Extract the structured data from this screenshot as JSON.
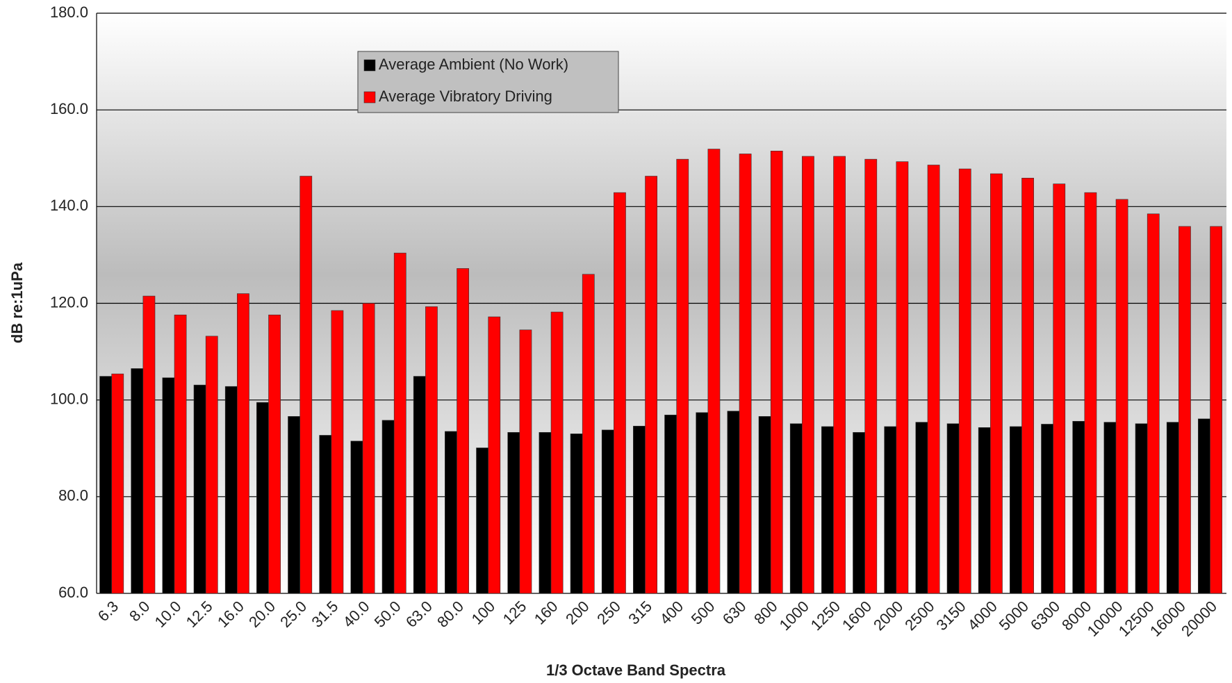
{
  "chart_data": {
    "type": "bar",
    "x_label": "1/3 Octave Band Spectra",
    "y_label": "dB re:1uPa",
    "categories": [
      "6.3",
      "8.0",
      "10.0",
      "12.5",
      "16.0",
      "20.0",
      "25.0",
      "31.5",
      "40.0",
      "50.0",
      "63.0",
      "80.0",
      "100",
      "125",
      "160",
      "200",
      "250",
      "315",
      "400",
      "500",
      "630",
      "800",
      "1000",
      "1250",
      "1600",
      "2000",
      "2500",
      "3150",
      "4000",
      "5000",
      "6300",
      "8000",
      "10000",
      "12500",
      "16000",
      "20000"
    ],
    "series": [
      {
        "name": "Average Ambient (No Work)",
        "color": "#000000",
        "values": [
          104.9,
          106.5,
          104.6,
          103.1,
          102.8,
          99.5,
          96.6,
          92.7,
          91.5,
          95.8,
          104.9,
          93.5,
          90.1,
          93.3,
          93.3,
          93.0,
          93.8,
          94.6,
          96.9,
          97.4,
          97.7,
          96.6,
          95.1,
          94.5,
          93.3,
          94.5,
          95.4,
          95.1,
          94.3,
          94.5,
          95.0,
          95.6,
          95.4,
          95.1,
          95.4,
          96.1
        ]
      },
      {
        "name": "Average Vibratory Driving",
        "color": "#ff0000",
        "values": [
          105.4,
          121.5,
          117.6,
          113.2,
          122.0,
          117.6,
          146.3,
          118.5,
          120.0,
          130.4,
          119.3,
          127.2,
          117.2,
          114.5,
          118.2,
          126.0,
          142.9,
          146.3,
          149.8,
          151.9,
          150.9,
          151.5,
          150.4,
          150.4,
          149.8,
          149.3,
          148.6,
          147.8,
          146.8,
          145.9,
          144.7,
          142.9,
          141.5,
          138.5,
          135.9,
          135.9
        ]
      }
    ],
    "ylim": [
      60,
      180
    ],
    "yticks": [
      {
        "value": 60,
        "label": "60.0"
      },
      {
        "value": 80,
        "label": "80.0"
      },
      {
        "value": 100,
        "label": "100.0"
      },
      {
        "value": 120,
        "label": "120.0"
      },
      {
        "value": 140,
        "label": "140.0"
      },
      {
        "value": 160,
        "label": "160.0"
      },
      {
        "value": 180,
        "label": "180.0"
      }
    ],
    "grid": true,
    "legend": "upper left"
  }
}
